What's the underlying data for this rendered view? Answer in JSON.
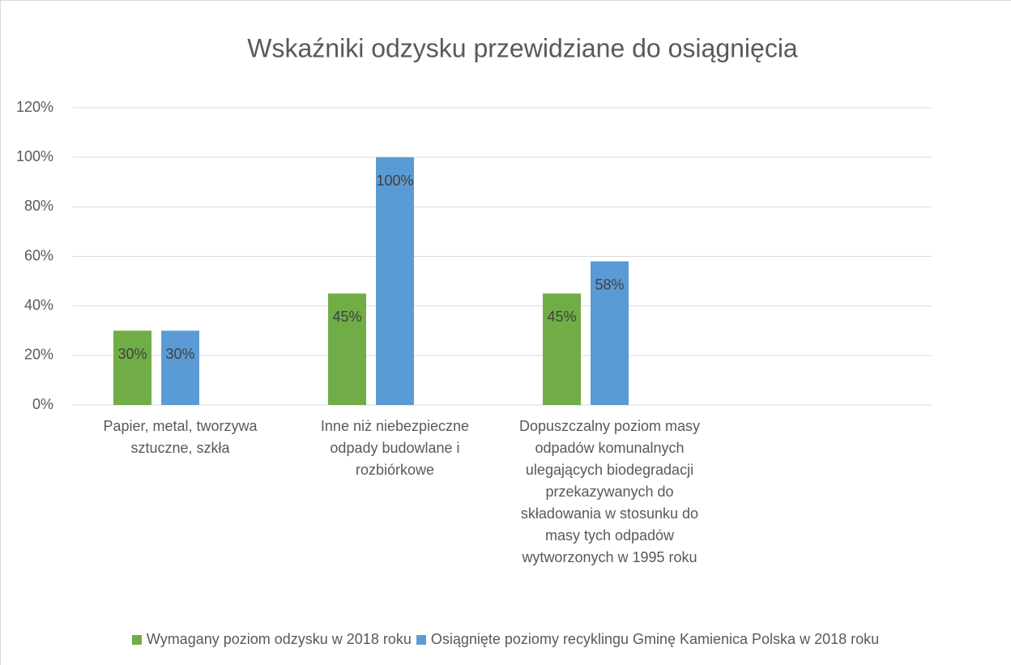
{
  "chart_data": {
    "type": "bar",
    "title": "Wskaźniki odzysku przewidziane do osiągnięcia",
    "categories": [
      "Papier, metal, tworzywa sztuczne, szkła",
      "Inne niż niebezpieczne odpady budowlane i rozbiórkowe",
      "Dopuszczalny poziom masy odpadów komunalnych ulegających biodegradacji przekazywanych do składowania w stosunku do masy tych odpadów wytworzonych w 1995 roku",
      null
    ],
    "series": [
      {
        "name": "Wymagany poziom odzysku w 2018 roku",
        "color": "#70ad47",
        "values": [
          30,
          45,
          45,
          null
        ],
        "value_labels": [
          "30%",
          "45%",
          "45%",
          null
        ]
      },
      {
        "name": "Osiągnięte poziomy recyklingu Gminę Kamienica Polska w 2018 roku",
        "color": "#5b9bd5",
        "values": [
          30,
          100,
          58,
          null
        ],
        "value_labels": [
          "30%",
          "100%",
          "58%",
          null
        ]
      }
    ],
    "ylim": [
      0,
      120
    ],
    "yticks": [
      {
        "value": 0,
        "label": "0%"
      },
      {
        "value": 20,
        "label": "20%"
      },
      {
        "value": 40,
        "label": "40%"
      },
      {
        "value": 60,
        "label": "60%"
      },
      {
        "value": 80,
        "label": "80%"
      },
      {
        "value": 100,
        "label": "100%"
      },
      {
        "value": 120,
        "label": "120%"
      }
    ],
    "grid": true,
    "legend": "bottom"
  }
}
